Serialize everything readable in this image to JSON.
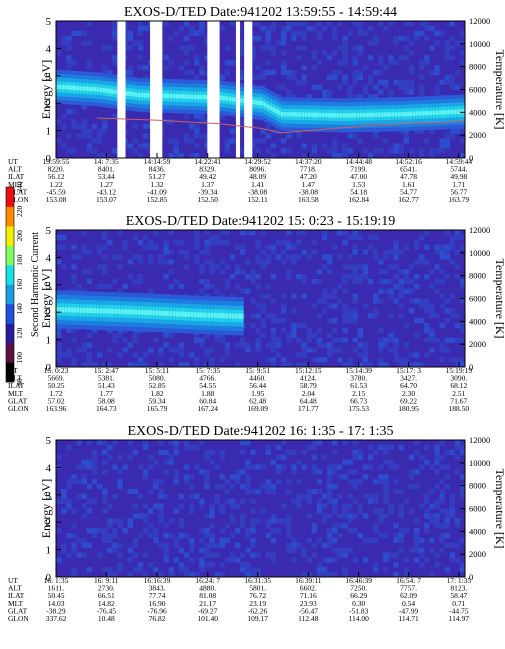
{
  "chart_data": [
    {
      "type": "heatmap",
      "title": "EXOS-D/TED   Date:941202  13:59:55 - 14:59:44",
      "ylabel": "Energy [eV]",
      "y2label": "Temperature [K]",
      "ylim": [
        0,
        5
      ],
      "y2lim": [
        0,
        12000
      ],
      "yticks": [
        "0",
        "1",
        "2",
        "3",
        "4",
        "5"
      ],
      "y2ticks": [
        "0",
        "2000",
        "4000",
        "6000",
        "8000",
        "10000",
        "12000"
      ],
      "band_center": [
        [
          0.0,
          2.6
        ],
        [
          0.1,
          2.5
        ],
        [
          0.2,
          2.3
        ],
        [
          0.3,
          2.25
        ],
        [
          0.4,
          2.2
        ],
        [
          0.45,
          2.1
        ],
        [
          0.5,
          2.0
        ],
        [
          0.55,
          1.6
        ],
        [
          0.7,
          1.55
        ],
        [
          0.85,
          1.6
        ],
        [
          1.0,
          1.7
        ]
      ],
      "band_halfwidth": 0.4,
      "temperature_trace": [
        [
          0.1,
          3500
        ],
        [
          0.25,
          3300
        ],
        [
          0.4,
          3000
        ],
        [
          0.5,
          2600
        ],
        [
          0.55,
          2200
        ],
        [
          0.65,
          2500
        ],
        [
          0.75,
          2800
        ],
        [
          0.85,
          3000
        ],
        [
          1.0,
          3200
        ]
      ],
      "gaps": [
        [
          0.15,
          0.17
        ],
        [
          0.23,
          0.26
        ],
        [
          0.37,
          0.4
        ],
        [
          0.44,
          0.45
        ],
        [
          0.46,
          0.48
        ]
      ],
      "ephemeris": {
        "labels": [
          "UT",
          "ALT",
          "ILAT",
          "MLT",
          "GLAT",
          "GLON"
        ],
        "columns": [
          [
            "13:59:55",
            "8220.",
            "56.12",
            "1.22",
            "-45.59",
            "153.08"
          ],
          [
            "14: 7:35",
            "8401.",
            "53.44",
            "1.27",
            "-43.12",
            "153.07"
          ],
          [
            "14:14:59",
            "8436.",
            "51.27",
            "1.32",
            "-41.09",
            "152.85"
          ],
          [
            "14:22:41",
            "8329.",
            "49.42",
            "1.37",
            "-39.34",
            "152.50"
          ],
          [
            "14:29:52",
            "8096.",
            "48.09",
            "1.41",
            "-38.08",
            "152.11"
          ],
          [
            "14:37:20",
            "7718.",
            "47.20",
            "1.47",
            "-38.08",
            "163.58"
          ],
          [
            "14:44:48",
            "7199.",
            "47.00",
            "1.53",
            "54.18",
            "162.84"
          ],
          [
            "14:52:16",
            "6541.",
            "47.78",
            "1.61",
            "54.77",
            "162.77"
          ],
          [
            "14:59:44",
            "5744.",
            "49.98",
            "1.71",
            "56.77",
            "163.79"
          ]
        ]
      }
    },
    {
      "type": "heatmap",
      "title": "EXOS-D/TED   Date:941202  15: 0:23 - 15:19:19",
      "ylabel": "Energy [eV]",
      "y2label": "Temperature [K]",
      "ylim": [
        0,
        5
      ],
      "y2lim": [
        0,
        12000
      ],
      "yticks": [
        "0",
        "1",
        "2",
        "3",
        "4",
        "5"
      ],
      "y2ticks": [
        "0",
        "2000",
        "4000",
        "6000",
        "8000",
        "10000",
        "12000"
      ],
      "band_center": [
        [
          0.0,
          2.1
        ],
        [
          0.2,
          2.0
        ],
        [
          0.35,
          1.9
        ],
        [
          0.45,
          1.85
        ]
      ],
      "band_end": 0.46,
      "band_halfwidth": 0.45,
      "ephemeris": {
        "labels": [
          "UT",
          "ALT",
          "ILAT",
          "MLT",
          "GLAT",
          "GLON"
        ],
        "columns": [
          [
            "15: 0:23",
            "5669.",
            "50.25",
            "1.72",
            "57.02",
            "163.96"
          ],
          [
            "15: 2:47",
            "5381.",
            "51.43",
            "1.77",
            "58.08",
            "164.73"
          ],
          [
            "15: 5:11",
            "5080.",
            "52.85",
            "1.82",
            "59.34",
            "165.79"
          ],
          [
            "15: 7:35",
            "4766.",
            "54.55",
            "1.88",
            "60.84",
            "167.24"
          ],
          [
            "15: 9:51",
            "4460.",
            "56.44",
            "1.95",
            "62.48",
            "169.09"
          ],
          [
            "15:12:15",
            "4124.",
            "58.79",
            "2.04",
            "64.48",
            "171.77"
          ],
          [
            "15:14:39",
            "3780.",
            "61.53",
            "2.15",
            "66.73",
            "175.53"
          ],
          [
            "15:17: 3",
            "3427.",
            "64.70",
            "2.30",
            "69.22",
            "180.95"
          ],
          [
            "15:19:19",
            "3090.",
            "68.12",
            "2.51",
            "71.67",
            "188.50"
          ]
        ]
      }
    },
    {
      "type": "heatmap",
      "title": "EXOS-D/TED   Date:941202  16: 1:35 - 17: 1:35",
      "ylabel": "Energy [eV]",
      "y2label": "Temperature [K]",
      "ylim": [
        0,
        5
      ],
      "y2lim": [
        0,
        12000
      ],
      "yticks": [
        "0",
        "1",
        "2",
        "3",
        "4",
        "5"
      ],
      "y2ticks": [
        "0",
        "2000",
        "4000",
        "6000",
        "8000",
        "10000",
        "12000"
      ],
      "ephemeris": {
        "labels": [
          "UT",
          "ALT",
          "ILAT",
          "MLT",
          "GLAT",
          "GLON"
        ],
        "columns": [
          [
            "16: 1:35",
            "1611.",
            "50.45",
            "14.03",
            "-38.29",
            "337.62"
          ],
          [
            "16: 9:11",
            "2730.",
            "66.51",
            "14.82",
            "-76.45",
            "10.48"
          ],
          [
            "16:16:39",
            "3843.",
            "77.74",
            "16.90",
            "-76.96",
            "76.82"
          ],
          [
            "16:24: 7",
            "4880.",
            "81.08",
            "21.17",
            "-69.27",
            "101.40"
          ],
          [
            "16:31:35",
            "5801.",
            "76.72",
            "23.19",
            "-62.26",
            "109.17"
          ],
          [
            "16:39:11",
            "6602.",
            "71.16",
            "23.93",
            "-56.47",
            "112.48"
          ],
          [
            "16:46:39",
            "7250.",
            "66.29",
            "0.30",
            "-51.83",
            "114.00"
          ],
          [
            "16:54: 7",
            "7757.",
            "62.09",
            "0.54",
            "-47.99",
            "114.71"
          ],
          [
            "17: 1:35",
            "8123.",
            "58.47",
            "0.71",
            "-44.75",
            "114.97"
          ]
        ]
      }
    },
    {
      "type": "colorbar",
      "label": "Second Harmonic Current",
      "ticks": [
        "80",
        "100",
        "120",
        "140",
        "160",
        "180",
        "200",
        "220",
        "240"
      ],
      "range": [
        80,
        240
      ],
      "colors": [
        "#000000",
        "#5a1040",
        "#2a1a9e",
        "#1e50d8",
        "#1a9ee0",
        "#16e0e8",
        "#7dff60",
        "#f4f000",
        "#ff8a00",
        "#e81010"
      ]
    }
  ]
}
